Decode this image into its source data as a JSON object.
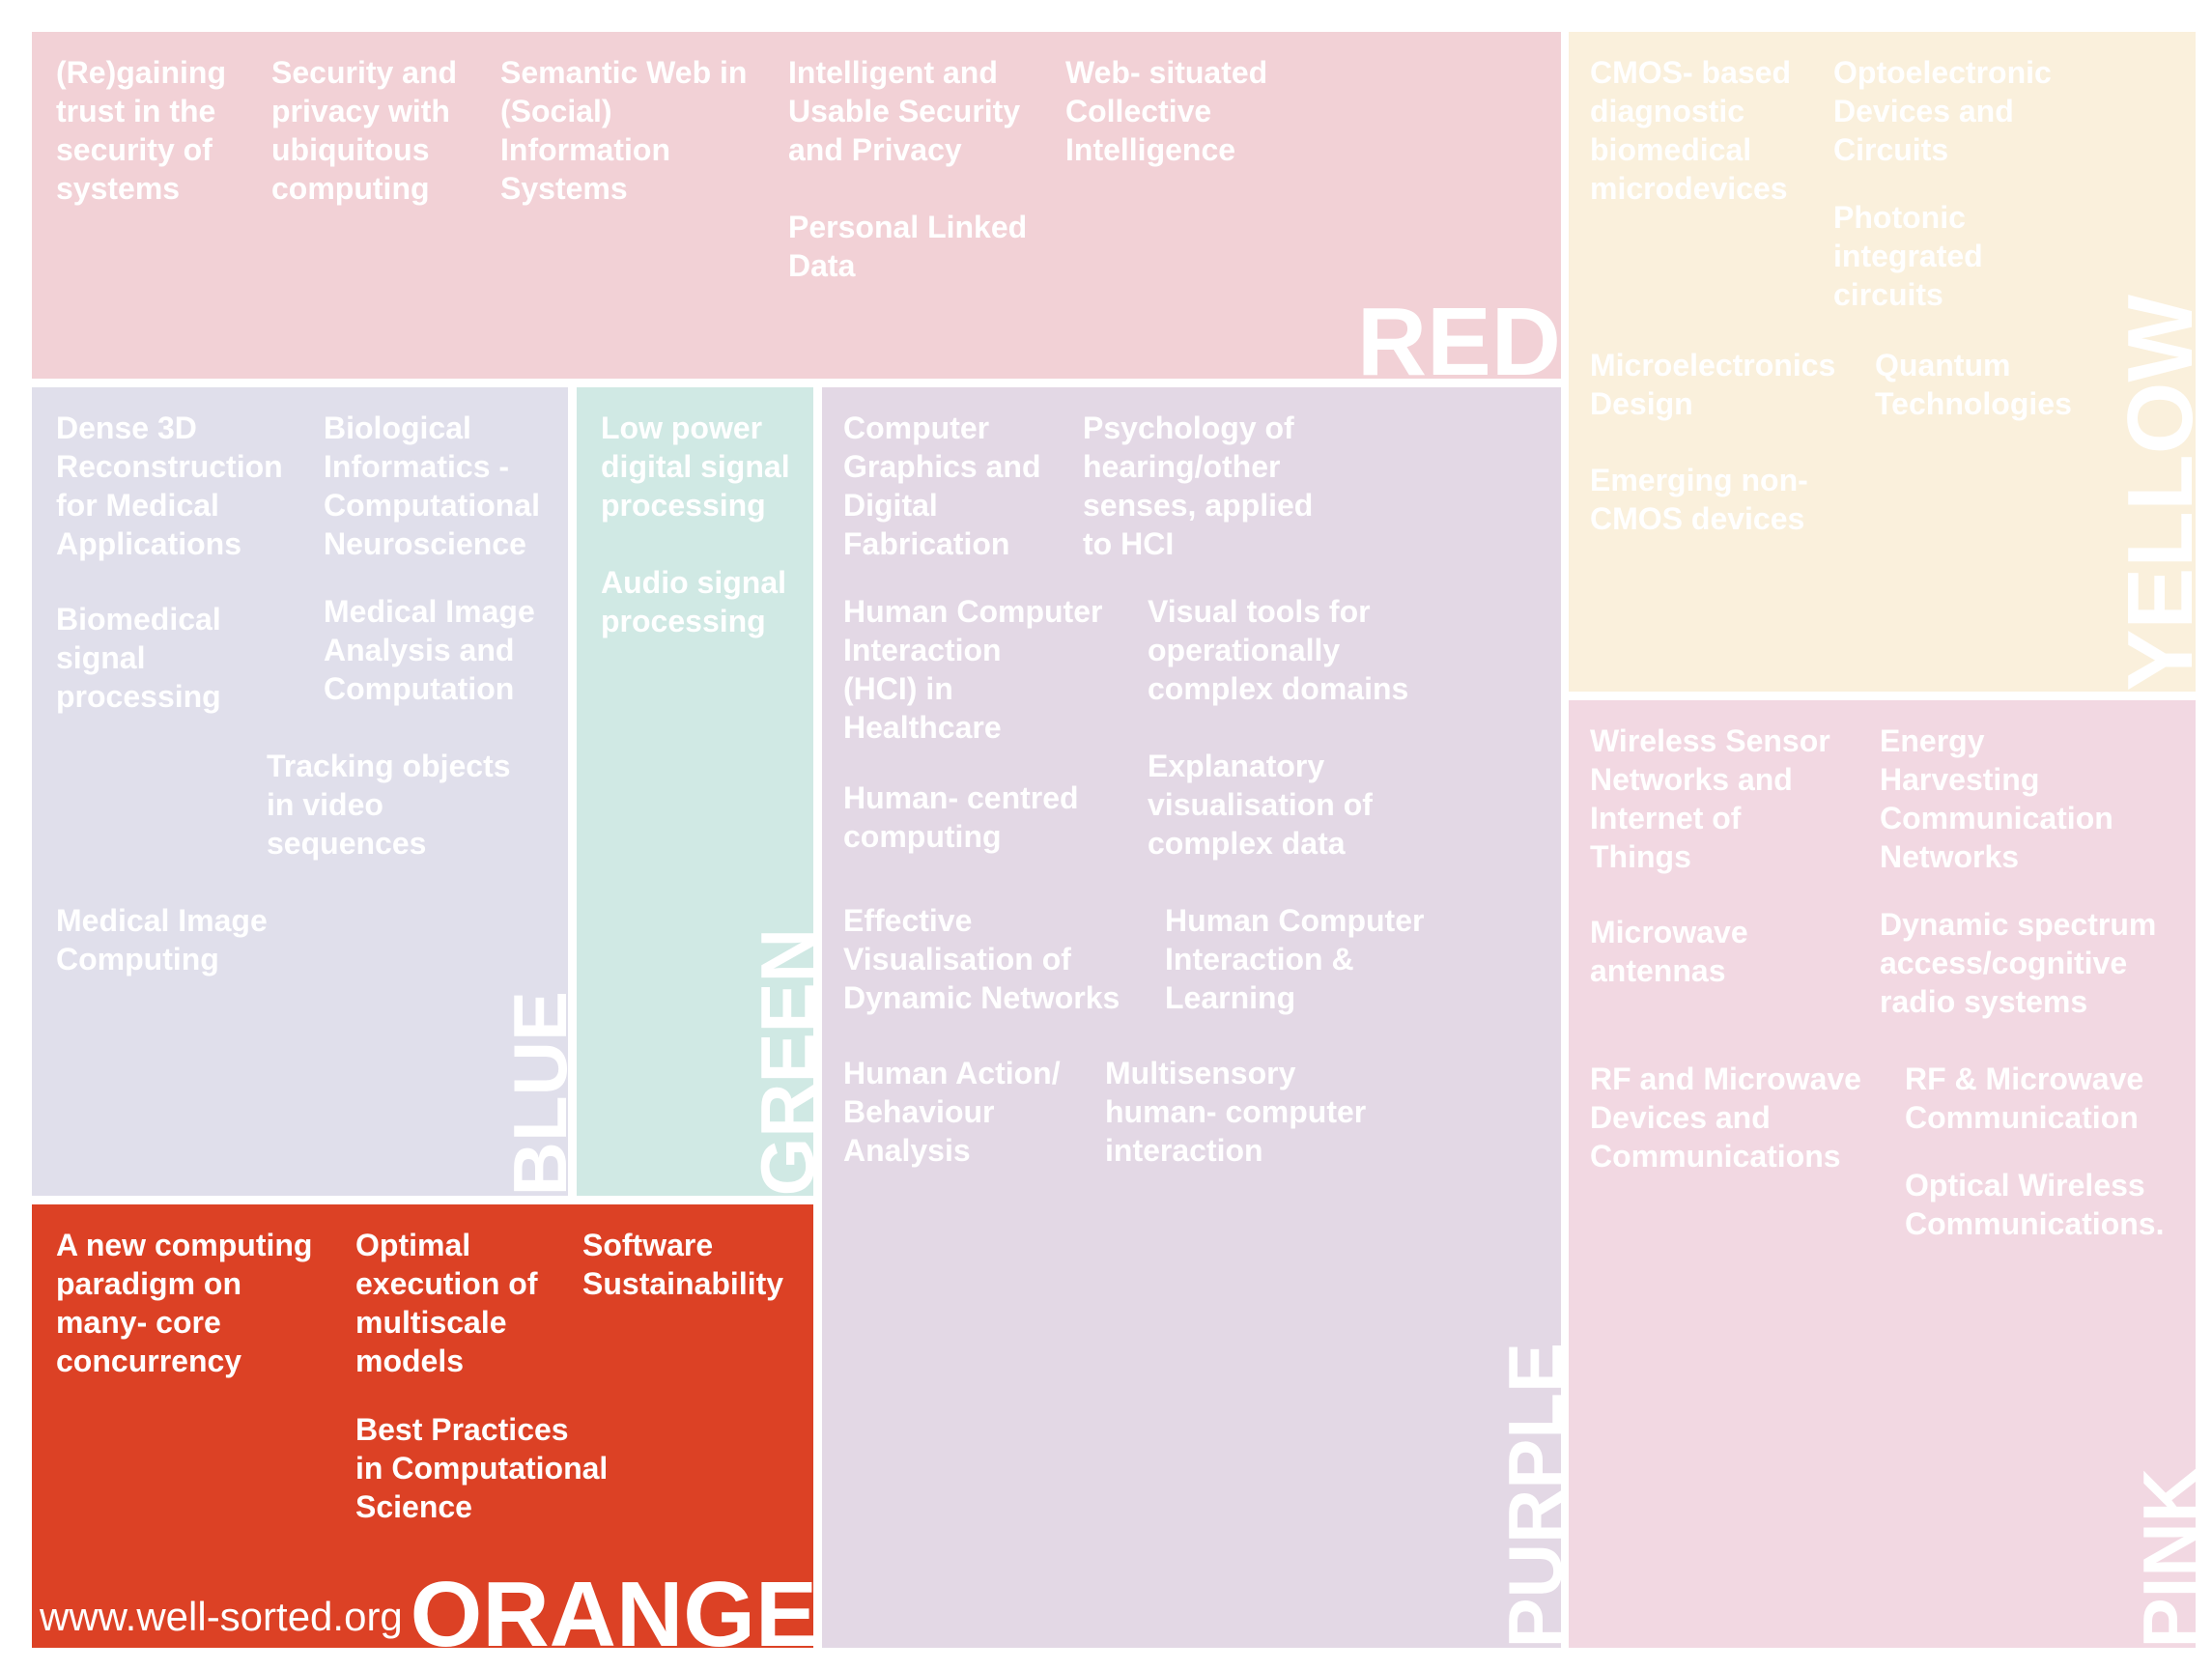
{
  "colors": {
    "red": "#f2d1d6",
    "yellow": "#faf0dc",
    "blue": "#e0dfeb",
    "green": "#d0e9e4",
    "purple": "#e3d8e5",
    "pink": "#f2d8e2",
    "orange": "#dc4125"
  },
  "categories": {
    "red": "RED",
    "yellow": "YELLOW",
    "blue": "BLUE",
    "green": "GREEN",
    "purple": "PURPLE",
    "pink": "PINK",
    "orange": "ORANGE"
  },
  "red_items": [
    "(Re)gaining\ntrust in the\nsecurity of\nsystems",
    "Security and\nprivacy with\nubiquitous\ncomputing",
    "Semantic Web in\n(Social)\nInformation\nSystems",
    "Intelligent and\nUsable Security\nand Privacy",
    "Personal Linked\nData",
    "Web- situated\nCollective\nIntelligence"
  ],
  "yellow_items": [
    "CMOS- based\ndiagnostic\nbiomedical\nmicrodevices",
    "Optoelectronic\nDevices and\nCircuits",
    "Photonic\nintegrated\ncircuits",
    "Microelectronics\nDesign",
    "Quantum\nTechnologies",
    "Emerging non-\nCMOS devices"
  ],
  "blue_items": [
    "Dense 3D\nReconstruction\nfor Medical\nApplications",
    "Biological\nInformatics -\nComputational\nNeuroscience",
    "Biomedical\nsignal\nprocessing",
    "Medical Image\nAnalysis and\nComputation",
    "Tracking objects\nin video\nsequences",
    "Medical Image\nComputing"
  ],
  "green_items": [
    "Low power\ndigital signal\nprocessing",
    "Audio signal\nprocessing"
  ],
  "purple_items": [
    "Computer\nGraphics and\nDigital\nFabrication",
    "Psychology of\nhearing/other\nsenses, applied\nto HCI",
    "Human Computer\nInteraction\n(HCI) in\nHealthcare",
    "Visual tools for\noperationally\ncomplex domains",
    "Human- centred\ncomputing",
    "Explanatory\nvisualisation of\ncomplex data",
    "Effective\nVisualisation of\nDynamic Networks",
    "Human Computer\nInteraction &\nLearning",
    "Human Action/\nBehaviour\nAnalysis",
    "Multisensory\nhuman- computer\ninteraction"
  ],
  "pink_items": [
    "Wireless Sensor\nNetworks and\nInternet of\nThings",
    "Energy\nHarvesting\nCommunication\nNetworks",
    "Microwave\nantennas",
    "Dynamic spectrum\naccess/cognitive\nradio systems",
    "RF and Microwave\nDevices and\nCommunications",
    "RF & Microwave\nCommunication",
    "Optical Wireless\nCommunications."
  ],
  "orange_items": [
    "A new computing\nparadigm on\nmany- core\nconcurrency",
    "Optimal\nexecution of\nmultiscale\nmodels",
    "Software\nSustainability",
    "Best Practices\nin Computational\nScience"
  ],
  "footer": "www.well-sorted.org"
}
